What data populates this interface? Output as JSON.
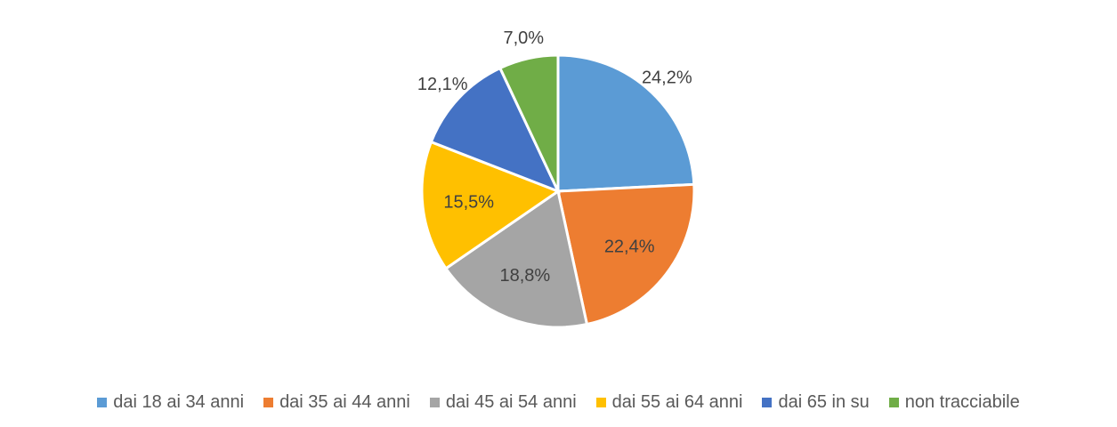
{
  "chart_data": {
    "type": "pie",
    "title": "",
    "categories": [
      "dai 18 ai 34 anni",
      "dai 35 ai 44 anni",
      "dai 45 ai 54 anni",
      "dai 55 ai 64 anni",
      "dai 65 in su",
      "non tracciabile"
    ],
    "values": [
      24.2,
      22.4,
      18.8,
      15.5,
      12.1,
      7.0
    ],
    "labels": [
      "24,2%",
      "22,4%",
      "18,8%",
      "15,5%",
      "12,1%",
      "7,0%"
    ],
    "colors": [
      "#5B9BD5",
      "#ED7D31",
      "#A5A5A5",
      "#FFC000",
      "#4472C4",
      "#70AD47"
    ],
    "legend_position": "bottom"
  }
}
